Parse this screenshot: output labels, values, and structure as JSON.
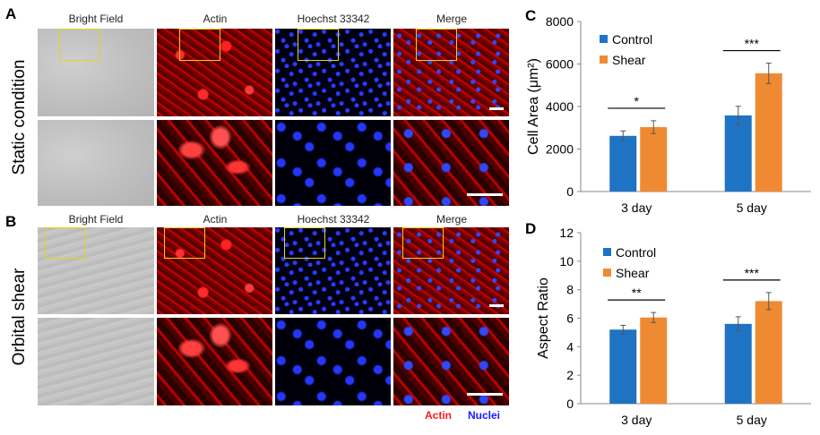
{
  "panels": {
    "A": "A",
    "B": "B",
    "C": "C",
    "D": "D"
  },
  "columns": [
    "Bright Field",
    "Actin",
    "Hoechst 33342",
    "Merge"
  ],
  "rows": {
    "static": "Static condition",
    "shear": "Orbital shear"
  },
  "channel_legend": {
    "actin": "Actin",
    "nuclei": "Nuclei",
    "actin_color": "#ff1a1a",
    "nuclei_color": "#1a1aff"
  },
  "chart_data": [
    {
      "type": "bar",
      "panel": "C",
      "categories": [
        "3 day",
        "5 day"
      ],
      "series": [
        {
          "name": "Control",
          "color": "#1f73c4",
          "values": [
            2620,
            3580
          ],
          "errors": [
            230,
            430
          ]
        },
        {
          "name": "Shear",
          "color": "#ef8a33",
          "values": [
            3030,
            5560
          ],
          "errors": [
            300,
            480
          ]
        }
      ],
      "ylabel": "Cell Area (μm²)",
      "ylim": [
        0,
        8000
      ],
      "yticks": [
        "0",
        "2000",
        "4000",
        "6000",
        "8000"
      ],
      "significance": [
        "*",
        "***"
      ],
      "legend": "top-left"
    },
    {
      "type": "bar",
      "panel": "D",
      "categories": [
        "3 day",
        "5 day"
      ],
      "series": [
        {
          "name": "Control",
          "color": "#1f73c4",
          "values": [
            5.2,
            5.6
          ],
          "errors": [
            0.3,
            0.5
          ]
        },
        {
          "name": "Shear",
          "color": "#ef8a33",
          "values": [
            6.05,
            7.2
          ],
          "errors": [
            0.35,
            0.6
          ]
        }
      ],
      "ylabel": "Aspect Ratio",
      "ylim": [
        0,
        12
      ],
      "yticks": [
        "0",
        "2",
        "4",
        "6",
        "8",
        "10",
        "12"
      ],
      "significance": [
        "**",
        "***"
      ],
      "legend": "top-left"
    }
  ]
}
